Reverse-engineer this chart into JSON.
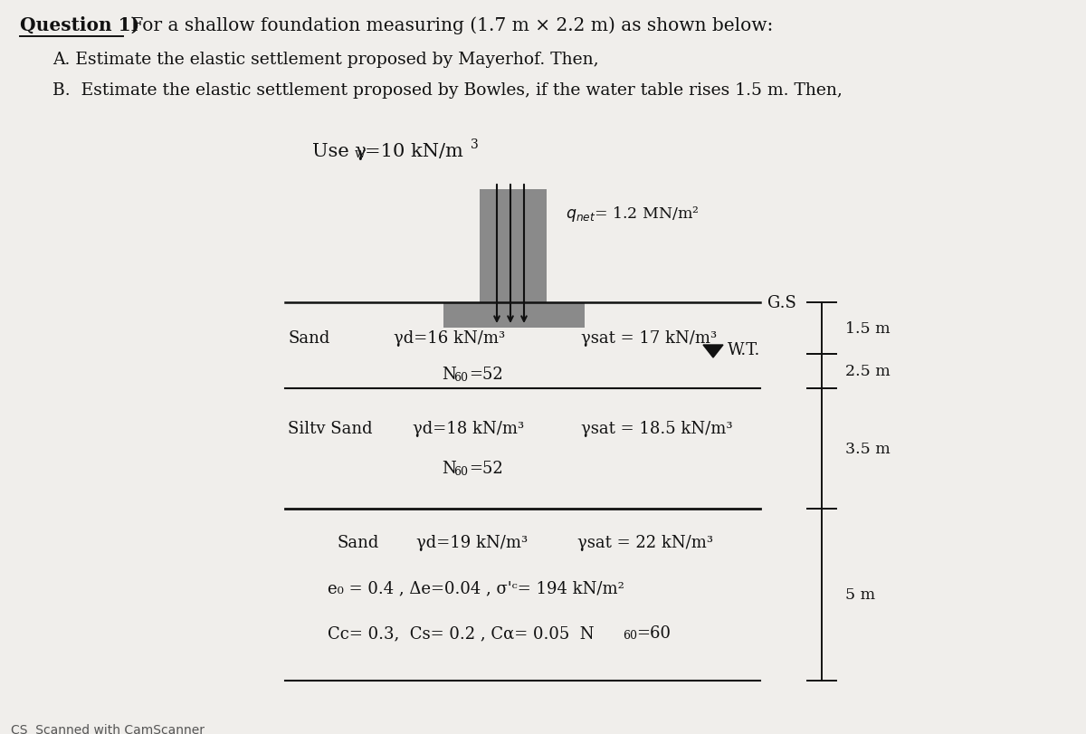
{
  "title_q": "Question 1)",
  "title_rest": " For a shallow foundation measuring (1.7 m × 2.2 m) as shown below:",
  "line_A": "A. Estimate the elastic settlement proposed by Mayerhof. Then,",
  "line_B": "B.  Estimate the elastic settlement proposed by Bowles, if the water table rises 1.5 m. Then,",
  "gs_label": "G.S",
  "sand1_label": "Sand",
  "sand1_yd": "γd=16 kN/m³",
  "sand1_ysat": "γsat = 17 kN/m³",
  "sand1_Nval": "=52",
  "wt_label": "W.T.",
  "sand2_label": "Siltv Sand",
  "sand2_yd": "γd=18 kN/m³",
  "sand2_ysat": "γsat = 18.5 kN/m³",
  "sand2_Nval": "=52",
  "sand3_label": "Sand",
  "sand3_yd": "γd=19 kN/m³",
  "sand3_ysat": "γsat = 22 kN/m³",
  "sand3_eo": "e₀ = 0.4 , Δe=0.04 , σ'ᶜ= 194 kN/m²",
  "sand3_Cc": "Cc= 0.3,  Cs= 0.2 , Cα= 0.05  N",
  "sand3_Cc_val": "=60",
  "dim1": "1.5 m",
  "dim2": "2.5 m",
  "dim3": "3.5 m",
  "dim4": "5 m",
  "scanner": "CS  Scanned with CamScanner",
  "bg": "#f0eeeb",
  "dark": "#111111",
  "gray_box": "#8a8a8a"
}
